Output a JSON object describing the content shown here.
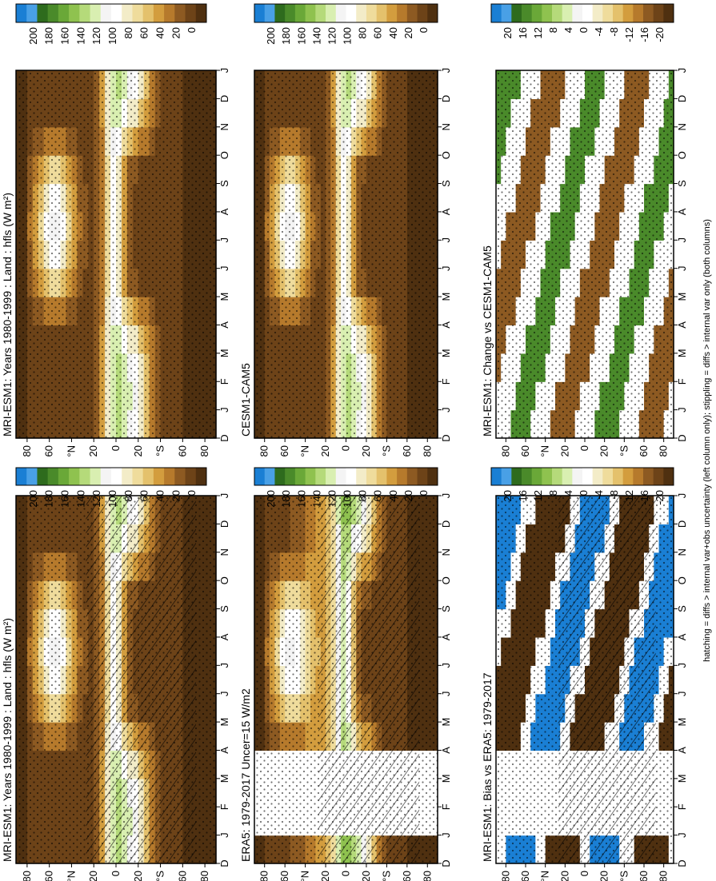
{
  "figure": {
    "footnote": "hatching = diffs > internal var+obs uncertainty (left column only); stippling = diffs > internal var only (both columns)",
    "orientation": "rotated 90 degrees clockwise"
  },
  "palettes": {
    "abs": [
      "#1a7fd4",
      "#49a0e6",
      "#2e6b1d",
      "#4a8a2a",
      "#6aa838",
      "#8fc24f",
      "#b5da7a",
      "#d9efb1",
      "#f4f4f4",
      "#ffffff",
      "#f3ecc8",
      "#efdc9c",
      "#e4c16c",
      "#d39d3e",
      "#b67a2c",
      "#8d5a22",
      "#6d4318",
      "#4f3010"
    ],
    "diff": [
      "#1a7fd4",
      "#49a0e6",
      "#2e6b1d",
      "#4a8a2a",
      "#6aa838",
      "#8fc24f",
      "#b5da7a",
      "#d9efb1",
      "#f4f4f4",
      "#ffffff",
      "#f3ecc8",
      "#efdc9c",
      "#e4c16c",
      "#d39d3e",
      "#b67a2c",
      "#8d5a22",
      "#6d4318",
      "#4f3010"
    ]
  },
  "chart_data": [
    {
      "type": "heatmap",
      "title": "MRI-ESM1: Years 1980-1999 : Land : hfls (W m²)",
      "x": [
        "D",
        "J",
        "F",
        "M",
        "A",
        "M",
        "J",
        "J",
        "A",
        "S",
        "O",
        "N",
        "D",
        "J"
      ],
      "y": [
        "80",
        "60",
        "°N",
        "20",
        "0",
        "20",
        "°S",
        "60",
        "80"
      ],
      "ylim": [
        -90,
        90
      ],
      "colorbar": {
        "ticks": [
          "200",
          "180",
          "160",
          "140",
          "120",
          "100",
          "80",
          "60",
          "40",
          "20",
          "0"
        ],
        "palette": "abs"
      },
      "hatching": true,
      "stippling": true,
      "missing_months": []
    },
    {
      "type": "heatmap",
      "title": "MRI-ESM1: Years 1980-1999 : Land : hfls (W m²)",
      "x": [
        "D",
        "J",
        "F",
        "M",
        "A",
        "M",
        "J",
        "J",
        "A",
        "S",
        "O",
        "N",
        "D",
        "J"
      ],
      "y": [
        "80",
        "60",
        "°N",
        "20",
        "0",
        "20",
        "°S",
        "60",
        "80"
      ],
      "ylim": [
        -90,
        90
      ],
      "colorbar": {
        "ticks": [
          "200",
          "180",
          "160",
          "140",
          "120",
          "100",
          "80",
          "60",
          "40",
          "20",
          "0"
        ],
        "palette": "abs"
      },
      "hatching": false,
      "stippling": true,
      "missing_months": []
    },
    {
      "type": "heatmap",
      "title": "ERA5: 1979-2017 Uncer=15 W/m2",
      "x": [
        "D",
        "J",
        "F",
        "M",
        "A",
        "M",
        "J",
        "J",
        "A",
        "S",
        "O",
        "N",
        "D",
        "J"
      ],
      "y": [
        "80",
        "60",
        "°N",
        "20",
        "0",
        "20",
        "°S",
        "60",
        "80"
      ],
      "ylim": [
        -90,
        90
      ],
      "colorbar": {
        "ticks": [
          "200",
          "180",
          "160",
          "140",
          "120",
          "100",
          "80",
          "60",
          "40",
          "20",
          "0"
        ],
        "palette": "abs"
      },
      "hatching": true,
      "stippling": true,
      "missing_months": [
        "F",
        "M",
        "A"
      ]
    },
    {
      "type": "heatmap",
      "title": "CESM1-CAM5",
      "x": [
        "D",
        "J",
        "F",
        "M",
        "A",
        "M",
        "J",
        "J",
        "A",
        "S",
        "O",
        "N",
        "D",
        "J"
      ],
      "y": [
        "80",
        "60",
        "°N",
        "20",
        "0",
        "20",
        "°S",
        "60",
        "80"
      ],
      "ylim": [
        -90,
        90
      ],
      "colorbar": {
        "ticks": [
          "200",
          "180",
          "160",
          "140",
          "120",
          "100",
          "80",
          "60",
          "40",
          "20",
          "0"
        ],
        "palette": "abs"
      },
      "hatching": false,
      "stippling": true,
      "missing_months": []
    },
    {
      "type": "heatmap",
      "title": "MRI-ESM1: Bias vs ERA5: 1979-2017",
      "x": [
        "D",
        "J",
        "F",
        "M",
        "A",
        "M",
        "J",
        "J",
        "A",
        "S",
        "O",
        "N",
        "D",
        "J"
      ],
      "y": [
        "80",
        "60",
        "°N",
        "20",
        "0",
        "20",
        "°S",
        "60",
        "80"
      ],
      "ylim": [
        -90,
        90
      ],
      "colorbar": {
        "ticks": [
          "20",
          "16",
          "12",
          "8",
          "4",
          "0",
          "-4",
          "-8",
          "-12",
          "-16",
          "-20"
        ],
        "palette": "diff"
      },
      "hatching": true,
      "stippling": true,
      "missing_months": [
        "F",
        "M",
        "A"
      ]
    },
    {
      "type": "heatmap",
      "title": "MRI-ESM1: Change vs CESM1-CAM5",
      "x": [
        "D",
        "J",
        "F",
        "M",
        "A",
        "M",
        "J",
        "J",
        "A",
        "S",
        "O",
        "N",
        "D",
        "J"
      ],
      "y": [
        "80",
        "60",
        "°N",
        "20",
        "0",
        "20",
        "°S",
        "60",
        "80"
      ],
      "ylim": [
        -90,
        90
      ],
      "colorbar": {
        "ticks": [
          "20",
          "16",
          "12",
          "8",
          "4",
          "0",
          "-4",
          "-8",
          "-12",
          "-16",
          "-20"
        ],
        "palette": "diff"
      },
      "hatching": false,
      "stippling": true,
      "missing_months": []
    }
  ]
}
